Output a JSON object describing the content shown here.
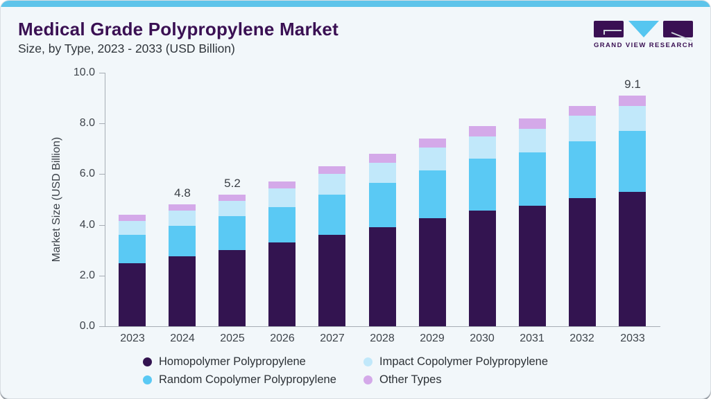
{
  "header": {
    "title": "Medical Grade Polypropylene Market",
    "subtitle": "Size, by Type, 2023 - 2033 (USD Billion)"
  },
  "logo": {
    "text": "GRAND VIEW RESEARCH"
  },
  "colors": {
    "accent_strip": "#5ec4ea",
    "card_background": "#f2f7fa",
    "title_text": "#3a1053",
    "axis": "#a6adb4",
    "tick_text": "#3e444b"
  },
  "chart_data": {
    "type": "bar",
    "stacked": true,
    "title": "Medical Grade Polypropylene Market Size, by Type, 2023 - 2033 (USD Billion)",
    "categories": [
      "2023",
      "2024",
      "2025",
      "2026",
      "2027",
      "2028",
      "2029",
      "2030",
      "2031",
      "2032",
      "2033"
    ],
    "series": [
      {
        "name": "Homopolymer Polypropylene",
        "color": "#331450",
        "values": [
          2.5,
          2.75,
          3.0,
          3.3,
          3.6,
          3.9,
          4.25,
          4.55,
          4.75,
          5.05,
          5.3
        ]
      },
      {
        "name": "Random Copolymer Polypropylene",
        "color": "#5ac9f4",
        "values": [
          1.1,
          1.2,
          1.35,
          1.4,
          1.6,
          1.75,
          1.9,
          2.05,
          2.1,
          2.25,
          2.4
        ]
      },
      {
        "name": "Impact Copolymer Polypropylene",
        "color": "#c1e8fa",
        "values": [
          0.55,
          0.6,
          0.6,
          0.75,
          0.8,
          0.8,
          0.9,
          0.9,
          0.95,
          1.0,
          1.0
        ]
      },
      {
        "name": "Other Types",
        "color": "#d4a9e9",
        "values": [
          0.25,
          0.25,
          0.25,
          0.25,
          0.3,
          0.35,
          0.35,
          0.4,
          0.4,
          0.4,
          0.4
        ]
      }
    ],
    "totals": [
      4.4,
      4.8,
      5.2,
      5.7,
      6.3,
      6.8,
      7.4,
      7.9,
      8.2,
      8.7,
      9.1
    ],
    "bar_total_labels": [
      "",
      "4.8",
      "5.2",
      "",
      "",
      "",
      "",
      "",
      "",
      "",
      "9.1"
    ],
    "xlabel": "",
    "ylabel": "Market Size (USD Billion)",
    "y_ticks": [
      "0.0",
      "2.0",
      "4.0",
      "6.0",
      "8.0",
      "10.0"
    ],
    "ylim": [
      0,
      10
    ],
    "grid": false,
    "legend_position": "bottom",
    "legend_order": [
      0,
      2,
      1,
      3
    ]
  }
}
